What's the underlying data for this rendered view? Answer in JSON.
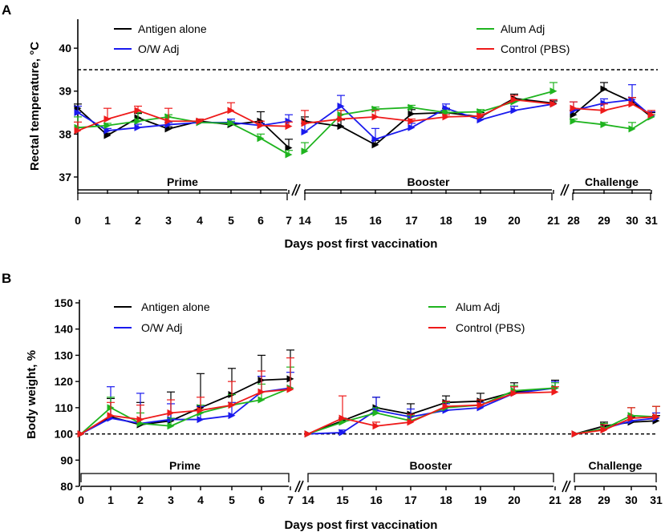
{
  "figure": {
    "panel_labels": [
      "A",
      "B"
    ],
    "threshold_style": "dashed"
  },
  "chart_data": [
    {
      "type": "line",
      "panel": "A",
      "ylabel": "Rectal temperature, °C",
      "xlabel": "Days post first vaccination",
      "ylim": [
        36.7,
        40.6
      ],
      "yticks": [
        37,
        38,
        39,
        40
      ],
      "threshold": 39.5,
      "segments": [
        {
          "label": "Prime",
          "days": [
            "0",
            "1",
            "2",
            "3",
            "4",
            "5",
            "6",
            "7"
          ]
        },
        {
          "label": "Booster",
          "days": [
            "14",
            "15",
            "16",
            "17",
            "18",
            "19",
            "20",
            "21"
          ]
        },
        {
          "label": "Challenge",
          "days": [
            "28",
            "29",
            "30",
            "31"
          ]
        }
      ],
      "legend": {
        "left": [
          "Antigen alone",
          "O/W Adj"
        ],
        "right": [
          "Alum Adj",
          "Control (PBS)"
        ]
      },
      "series": [
        {
          "name": "Antigen alone",
          "color": "#000000",
          "values": [
            38.6,
            37.97,
            38.38,
            38.12,
            38.3,
            38.22,
            38.3,
            37.68,
            38.3,
            38.18,
            37.75,
            38.47,
            38.5,
            38.4,
            38.83,
            38.72,
            38.45,
            39.05,
            38.75,
            38.4
          ],
          "errors": [
            0.1,
            0.05,
            0.1,
            0.05,
            0.05,
            0.05,
            0.22,
            0.2,
            0.1,
            0.15,
            0.1,
            0.1,
            0.1,
            0.1,
            0.1,
            0.05,
            0.1,
            0.15,
            0.1,
            0.1
          ]
        },
        {
          "name": "O/W Adj",
          "color": "#1a1aee",
          "values": [
            38.5,
            38.08,
            38.15,
            38.22,
            38.27,
            38.27,
            38.2,
            38.3,
            38.05,
            38.65,
            37.88,
            38.15,
            38.6,
            38.33,
            38.55,
            38.7,
            38.55,
            38.72,
            38.8,
            38.42
          ],
          "errors": [
            0.15,
            0.05,
            0.08,
            0.05,
            0.05,
            0.08,
            0.05,
            0.15,
            0.2,
            0.25,
            0.25,
            0.1,
            0.1,
            0.1,
            0.1,
            0.1,
            0.2,
            0.1,
            0.35,
            0.1
          ]
        },
        {
          "name": "Alum Adj",
          "color": "#1fb41f",
          "values": [
            38.15,
            38.2,
            38.3,
            38.4,
            38.27,
            38.25,
            37.9,
            37.52,
            37.6,
            38.45,
            38.58,
            38.62,
            38.5,
            38.52,
            38.75,
            39.0,
            38.3,
            38.22,
            38.12,
            38.4
          ],
          "errors": [
            0.25,
            0.05,
            0.2,
            0.05,
            0.05,
            0.05,
            0.1,
            0.1,
            0.2,
            0.1,
            0.05,
            0.05,
            0.05,
            0.05,
            0.05,
            0.2,
            0.05,
            0.05,
            0.15,
            0.05
          ]
        },
        {
          "name": "Control (PBS)",
          "color": "#ee1a1a",
          "values": [
            38.08,
            38.35,
            38.55,
            38.3,
            38.3,
            38.55,
            38.2,
            38.18,
            38.25,
            38.35,
            38.4,
            38.3,
            38.4,
            38.42,
            38.8,
            38.7,
            38.6,
            38.55,
            38.7,
            38.45
          ],
          "errors": [
            0.2,
            0.25,
            0.1,
            0.3,
            0.05,
            0.18,
            0.1,
            0.1,
            0.3,
            0.2,
            0.15,
            0.05,
            0.05,
            0.05,
            0.1,
            0.1,
            0.15,
            0.15,
            0.15,
            0.1
          ]
        }
      ]
    },
    {
      "type": "line",
      "panel": "B",
      "ylabel": "Body weight, %",
      "xlabel": "Days post first vaccination",
      "ylim": [
        80,
        150
      ],
      "yticks": [
        80,
        90,
        100,
        110,
        120,
        130,
        140,
        150
      ],
      "threshold": 100,
      "segments": [
        {
          "label": "Prime",
          "days": [
            "0",
            "1",
            "2",
            "3",
            "4",
            "5",
            "6",
            "7"
          ]
        },
        {
          "label": "Booster",
          "days": [
            "14",
            "15",
            "16",
            "17",
            "18",
            "19",
            "20",
            "21"
          ]
        },
        {
          "label": "Challenge",
          "days": [
            "28",
            "29",
            "30",
            "31"
          ]
        }
      ],
      "legend": {
        "left": [
          "Antigen alone",
          "O/W Adj"
        ],
        "right": [
          "Alum Adj",
          "Control (PBS)"
        ]
      },
      "series": [
        {
          "name": "Antigen alone",
          "color": "#000000",
          "values": [
            100,
            106.5,
            103.5,
            105,
            110,
            115,
            120.5,
            121,
            100,
            105,
            110,
            107.5,
            112,
            112.5,
            116,
            117.5,
            100,
            103,
            104.5,
            105
          ],
          "errors": [
            0,
            7,
            8.5,
            11,
            13,
            10,
            9.5,
            11,
            0,
            1,
            4,
            4,
            2.5,
            3,
            3.5,
            3,
            0,
            1.5,
            2,
            2
          ]
        },
        {
          "name": "O/W Adj",
          "color": "#1a1aee",
          "values": [
            100,
            106,
            104,
            105.5,
            105.5,
            107,
            116,
            117.5,
            100,
            100.5,
            109,
            106.5,
            109,
            110,
            115.5,
            117.5,
            100,
            102,
            105,
            106
          ],
          "errors": [
            0,
            12,
            11.5,
            6,
            5,
            5,
            6,
            6,
            0,
            1,
            5,
            3,
            2.5,
            2,
            2.5,
            2.5,
            0,
            1.5,
            2,
            2
          ]
        },
        {
          "name": "Alum Adj",
          "color": "#1fb41f",
          "values": [
            100,
            110,
            104,
            103,
            108,
            111,
            113,
            117.5,
            100,
            104.5,
            108,
            105,
            110,
            111,
            116.5,
            117.5,
            100,
            102,
            107,
            106.5
          ],
          "errors": [
            0,
            4,
            4,
            3,
            3,
            4,
            6,
            8,
            0,
            1,
            2,
            2,
            2,
            2,
            2,
            2,
            0,
            2,
            3,
            4
          ]
        },
        {
          "name": "Control (PBS)",
          "color": "#ee1a1a",
          "values": [
            100,
            107,
            105.5,
            108,
            109,
            111,
            116,
            117,
            100,
            106,
            103,
            104.5,
            110.5,
            111,
            115.5,
            116,
            100,
            101.5,
            106,
            106.5
          ],
          "errors": [
            0,
            5,
            5.5,
            5,
            5,
            9,
            8,
            12,
            0,
            8.5,
            1.5,
            3,
            2,
            2,
            2.5,
            2,
            0,
            2,
            4,
            4
          ]
        }
      ]
    }
  ]
}
